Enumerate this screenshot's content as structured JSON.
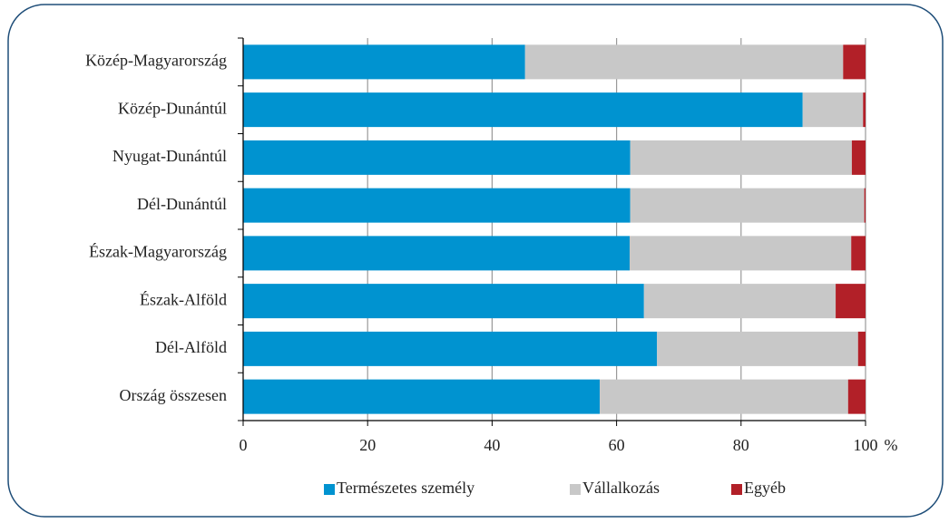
{
  "chart_data": {
    "type": "stacked_bar_horizontal",
    "categories": [
      "Közép-Magyarország",
      "Közép-Dunántúl",
      "Nyugat-Dunántúl",
      "Dél-Dunántúl",
      "Észak-Magyarország",
      "Észak-Alföld",
      "Dél-Alföld",
      "Ország összesen"
    ],
    "series": [
      {
        "name": "Természetes személy",
        "color": "#0093d0",
        "values": [
          45.3,
          89.9,
          62.2,
          62.2,
          62.1,
          64.4,
          66.5,
          57.3
        ]
      },
      {
        "name": "Vállalkozás",
        "color": "#c8c8c8",
        "values": [
          51.1,
          9.7,
          35.6,
          37.6,
          35.6,
          30.8,
          32.3,
          39.9
        ]
      },
      {
        "name": "Egyéb",
        "color": "#b22028",
        "values": [
          3.6,
          0.4,
          2.2,
          0.2,
          2.3,
          4.8,
          1.2,
          2.8
        ]
      }
    ],
    "xlabel": "%",
    "xlim": [
      0,
      100
    ],
    "xticks": [
      0,
      20,
      40,
      60,
      80,
      100
    ],
    "grid": true,
    "legend": "bottom"
  }
}
